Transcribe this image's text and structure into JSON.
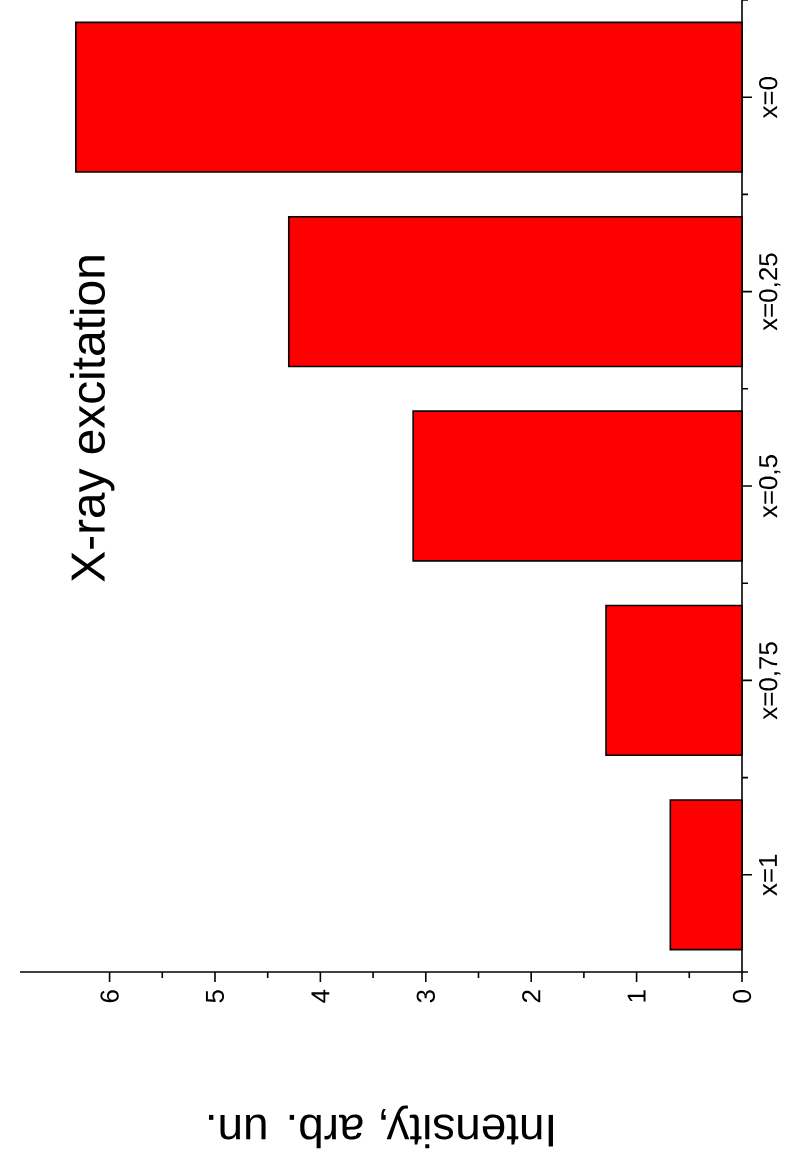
{
  "chart_data": {
    "type": "bar",
    "orientation": "horizontal",
    "categories": [
      "x=0",
      "x=0,25",
      "x=0,5",
      "x=0,75",
      "x=1"
    ],
    "values": [
      6.32,
      4.3,
      3.12,
      1.29,
      0.68
    ],
    "color": "#ff0000",
    "xlabel": "Intensity, arb. un.",
    "annotations": [
      "X-ray excitation"
    ],
    "xlim": [
      6.85,
      0
    ],
    "xticks": [
      0,
      1,
      2,
      3,
      4,
      5,
      6
    ],
    "grid": false
  }
}
